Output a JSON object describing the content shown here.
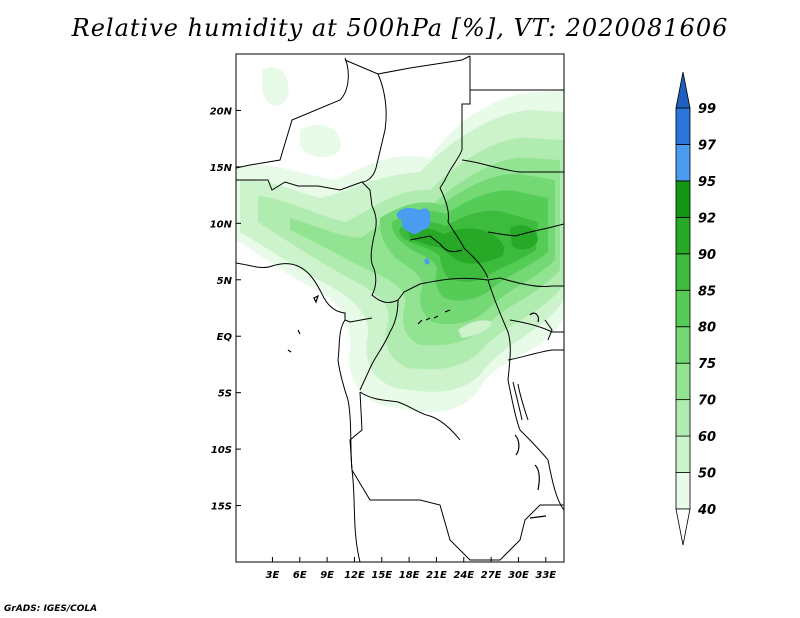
{
  "title": "Relative humidity at 500hPa [%], VT: 2020081606",
  "credit": "GrADS: IGES/COLA",
  "map": {
    "lon_range": [
      -1,
      35
    ],
    "lat_range": [
      -20,
      25
    ],
    "x_ticks": [
      {
        "lon": 3,
        "label": "3E"
      },
      {
        "lon": 6,
        "label": "6E"
      },
      {
        "lon": 9,
        "label": "9E"
      },
      {
        "lon": 12,
        "label": "12E"
      },
      {
        "lon": 15,
        "label": "15E"
      },
      {
        "lon": 18,
        "label": "18E"
      },
      {
        "lon": 21,
        "label": "21E"
      },
      {
        "lon": 24,
        "label": "24E"
      },
      {
        "lon": 27,
        "label": "27E"
      },
      {
        "lon": 30,
        "label": "30E"
      },
      {
        "lon": 33,
        "label": "33E"
      }
    ],
    "y_ticks": [
      {
        "lat": 20,
        "label": "20N"
      },
      {
        "lat": 15,
        "label": "15N"
      },
      {
        "lat": 10,
        "label": "10N"
      },
      {
        "lat": 5,
        "label": "5N"
      },
      {
        "lat": 0,
        "label": "EQ"
      },
      {
        "lat": -5,
        "label": "5S"
      },
      {
        "lat": -10,
        "label": "10S"
      },
      {
        "lat": -15,
        "label": "15S"
      }
    ]
  },
  "colorbar": {
    "levels": [
      40,
      50,
      60,
      70,
      75,
      80,
      85,
      90,
      92,
      95,
      97,
      99
    ],
    "labels": [
      "40",
      "50",
      "60",
      "70",
      "75",
      "80",
      "85",
      "90",
      "92",
      "95",
      "97",
      "99"
    ],
    "colors": [
      "#e8fae8",
      "#cdf3cd",
      "#b0ecb0",
      "#92e392",
      "#74d874",
      "#55cc55",
      "#3dbb3d",
      "#27a827",
      "#149614",
      "#4a9cf0",
      "#2a76da"
    ],
    "top_arrow_color": "#1e5fbf",
    "bottom_arrow_color": "#ffffff"
  }
}
